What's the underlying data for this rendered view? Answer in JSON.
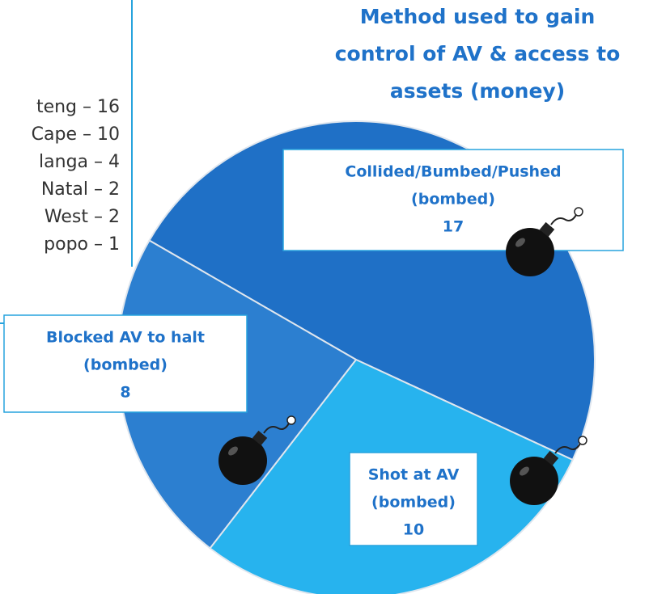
{
  "chart_data": {
    "type": "pie",
    "title": [
      "Method used to gain",
      "control of AV & access to",
      "assets (money)"
    ],
    "categories": [
      [
        "Collided/Bumbed/Pushed",
        "(bombed)"
      ],
      [
        "Shot at AV",
        "(bombed)"
      ],
      [
        "Blocked AV to halt",
        "(bombed)"
      ]
    ],
    "values": [
      17,
      10,
      8
    ],
    "colors": [
      "#1f70c6",
      "#27b3ee",
      "#2c7fd0"
    ]
  },
  "left_list": [
    "teng – 16",
    "Cape – 10",
    "langa – 4",
    "Natal – 2",
    "West – 2",
    "popo – 1"
  ]
}
